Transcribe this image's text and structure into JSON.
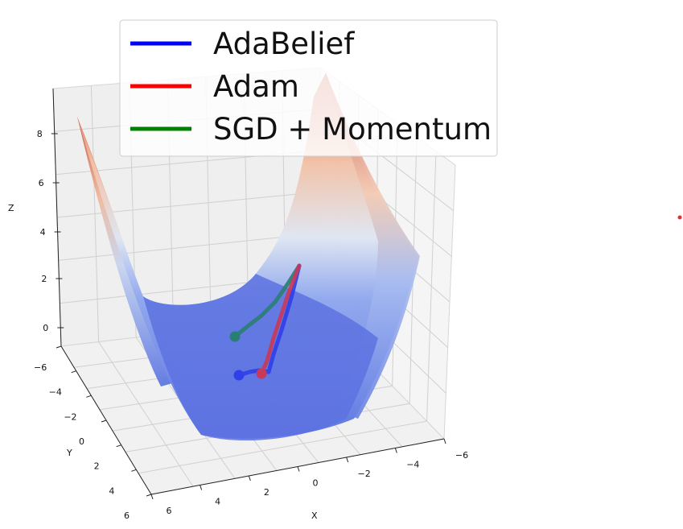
{
  "chart_data": {
    "type": "surface3d",
    "title": "",
    "xlabel": "X",
    "ylabel": "Y",
    "zlabel": "Z",
    "x_ticks": [
      "6",
      "4",
      "2",
      "0",
      "−2",
      "−4",
      "−6"
    ],
    "y_ticks": [
      "−6",
      "−4",
      "−2",
      "0",
      "2",
      "4",
      "6"
    ],
    "z_ticks": [
      "0",
      "2",
      "4",
      "6",
      "8"
    ],
    "xlim": [
      -6,
      6
    ],
    "ylim": [
      -6,
      6
    ],
    "zlim": [
      0,
      9
    ],
    "grid": true,
    "colormap": "coolwarm",
    "legend_location": "top",
    "series": [
      {
        "name": "AdaBelief",
        "color": "#0000ff",
        "x": [
          1.4,
          1.0,
          0.5,
          0.0,
          -0.5,
          -1.0,
          -1.8,
          -2.2
        ],
        "y": [
          2.1,
          2.0,
          1.8,
          1.5,
          1.0,
          0.2,
          -1.5,
          -2.3
        ],
        "end": [
          1.4,
          2.1
        ]
      },
      {
        "name": "Adam",
        "color": "#ff0000",
        "x": [
          0.5,
          0.3,
          0.0,
          -0.5,
          -1.0,
          -1.6,
          -2.2
        ],
        "y": [
          1.9,
          1.7,
          1.4,
          0.9,
          0.1,
          -1.3,
          -2.3
        ],
        "end": [
          0.5,
          1.9
        ]
      },
      {
        "name": "SGD + Momentum",
        "color": "#008000",
        "x": [
          0.9,
          0.4,
          -0.2,
          -0.8,
          -1.4,
          -2.2
        ],
        "y": [
          -1.4,
          -1.7,
          -1.9,
          -2.0,
          -2.1,
          -2.3
        ],
        "end": [
          0.9,
          -1.4
        ]
      }
    ]
  }
}
